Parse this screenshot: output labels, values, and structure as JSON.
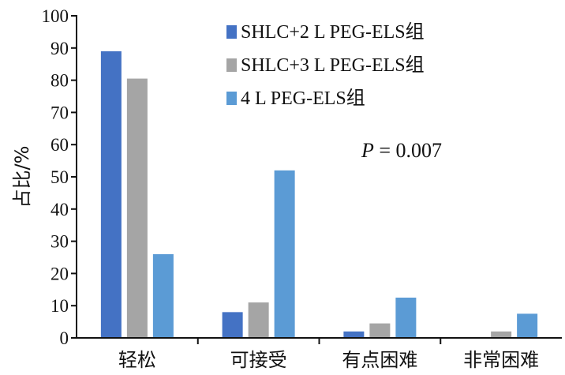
{
  "chart_data": {
    "type": "bar",
    "categories": [
      "轻松",
      "可接受",
      "有点困难",
      "非常困难"
    ],
    "series": [
      {
        "name": "SHLC+2 L PEG-ELS组",
        "color": "#4472c4",
        "values": [
          89,
          8,
          2,
          0
        ]
      },
      {
        "name": "SHLC+3 L PEG-ELS组",
        "color": "#a5a5a5",
        "values": [
          80.5,
          11,
          4.5,
          2
        ]
      },
      {
        "name": "4 L PEG-ELS组",
        "color": "#5b9bd5",
        "values": [
          26,
          52,
          12.5,
          7.5
        ]
      }
    ],
    "title": "",
    "xlabel": "",
    "ylabel": "占比/%",
    "ylim": [
      0,
      100
    ],
    "yticks": [
      "0",
      "10",
      "20",
      "30",
      "40",
      "50",
      "60",
      "70",
      "80",
      "90",
      "100"
    ],
    "grid": false,
    "legend_position": "top-right",
    "annotation": {
      "italic": "P",
      "rest": " = 0.007"
    }
  }
}
